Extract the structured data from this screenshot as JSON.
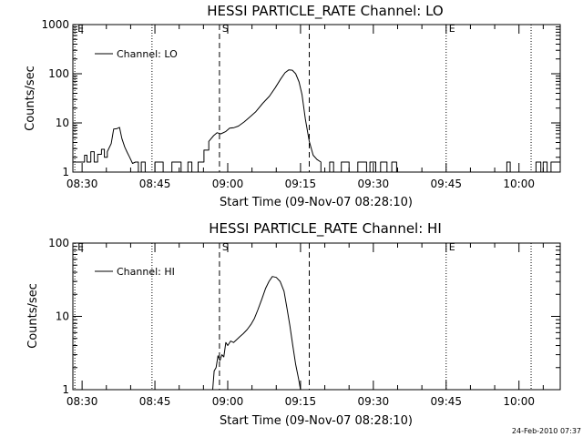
{
  "footer_timestamp": "24-Feb-2010 07:37",
  "chart_data": [
    {
      "type": "line",
      "title": "HESSI PARTICLE_RATE Channel: LO",
      "xlabel": "Start Time (09-Nov-07 08:28:10)",
      "ylabel": "Counts/sec",
      "x_unit": "minutes after 08:30",
      "xlim": [
        -1.9,
        98.5
      ],
      "ylim": [
        1,
        1000
      ],
      "yscale": "log",
      "x_ticks": [
        {
          "label": "08:30",
          "value": 0
        },
        {
          "label": "08:45",
          "value": 15
        },
        {
          "label": "09:00",
          "value": 30
        },
        {
          "label": "09:15",
          "value": 45
        },
        {
          "label": "09:30",
          "value": 60
        },
        {
          "label": "09:45",
          "value": 75
        },
        {
          "label": "10:00",
          "value": 90
        }
      ],
      "y_ticks": [
        {
          "label": "1",
          "value": 1
        },
        {
          "label": "10",
          "value": 10
        },
        {
          "label": "100",
          "value": 100
        },
        {
          "label": "1000",
          "value": 1000
        }
      ],
      "markers": [
        {
          "label": "E",
          "x": -1.5,
          "style": "dotted"
        },
        {
          "label": "",
          "x": 14.4,
          "style": "dotted"
        },
        {
          "label": "S",
          "x": 28.3,
          "style": "dashed"
        },
        {
          "label": "",
          "x": 46.8,
          "style": "dashed"
        },
        {
          "label": "E",
          "x": 75.0,
          "style": "dotted"
        },
        {
          "label": "",
          "x": 92.5,
          "style": "dotted"
        }
      ],
      "grid": false,
      "legend_position": "top-left",
      "series": [
        {
          "name": "Channel: LO",
          "x": [
            -1.9,
            0.5,
            0.5,
            1.0,
            1.0,
            1.8,
            1.8,
            2.5,
            2.5,
            3.2,
            3.2,
            4.0,
            4.0,
            4.6,
            4.6,
            5.2,
            5.2,
            6.0,
            6.5,
            7.1,
            7.7,
            8.2,
            8.8,
            9.3,
            9.8,
            10.4,
            11.0,
            11.6,
            11.6,
            12.2,
            12.2,
            13.0,
            13.0,
            15.0,
            15.0,
            16.7,
            16.7,
            18.5,
            18.5,
            20.4,
            20.4,
            21.8,
            21.8,
            22.6,
            22.6,
            23.9,
            23.9,
            25.1,
            25.1,
            26.1,
            26.1,
            27.1,
            27.8,
            28.6,
            29.6,
            30.4,
            31.3,
            32.2,
            33.4,
            34.5,
            35.8,
            37.2,
            38.6,
            39.8,
            40.9,
            41.8,
            42.6,
            43.3,
            44.0,
            44.7,
            45.3,
            46.0,
            46.8,
            47.6,
            48.4,
            49.2,
            49.2,
            51.0,
            51.0,
            51.8,
            51.8,
            53.4,
            53.4,
            55.0,
            55.0,
            56.8,
            56.8,
            58.6,
            58.6,
            59.3,
            59.3,
            60.5,
            60.5,
            61.5,
            61.5,
            62.8,
            62.8,
            63.8,
            63.8,
            64.8,
            64.8,
            87.5,
            87.5,
            88.2,
            88.2,
            93.5,
            93.5,
            94.5,
            94.5,
            95.0,
            95.0,
            95.8,
            95.8,
            96.6,
            96.6,
            97.5,
            98.5
          ],
          "y": [
            1.6,
            1.6,
            2.2,
            2.2,
            1.6,
            1.6,
            2.6,
            2.6,
            1.6,
            1.6,
            2.3,
            2.3,
            2.9,
            2.9,
            2.0,
            2.0,
            2.6,
            3.8,
            7.5,
            7.6,
            8.1,
            4.8,
            3.2,
            2.5,
            2.0,
            1.5,
            1.6,
            1.6,
            1.0,
            1.0,
            1.6,
            1.6,
            1.0,
            1.0,
            1.6,
            1.6,
            1.0,
            1.0,
            1.6,
            1.6,
            1.0,
            1.0,
            1.6,
            1.6,
            1.0,
            1.0,
            1.6,
            1.6,
            2.8,
            2.8,
            4.2,
            5.5,
            6.3,
            6.0,
            6.7,
            7.8,
            8.0,
            8.6,
            10.5,
            13.0,
            17.0,
            25.0,
            35.0,
            52.0,
            78.0,
            105.0,
            120.0,
            118.0,
            100.0,
            68.0,
            38.0,
            12.0,
            4.2,
            2.2,
            1.8,
            1.6,
            1.0,
            1.0,
            1.6,
            1.6,
            1.0,
            1.0,
            1.6,
            1.6,
            1.0,
            1.0,
            1.6,
            1.6,
            1.0,
            1.0,
            1.6,
            1.6,
            1.0,
            1.0,
            1.6,
            1.6,
            1.0,
            1.0,
            1.6,
            1.6,
            1.0,
            1.0,
            1.6,
            1.6,
            1.0,
            1.0,
            1.6,
            1.6,
            1.0,
            1.0,
            1.6,
            1.6,
            1.0,
            1.0,
            1.6,
            1.6,
            1.6
          ]
        }
      ]
    },
    {
      "type": "line",
      "title": "HESSI PARTICLE_RATE Channel: HI",
      "xlabel": "Start Time (09-Nov-07 08:28:10)",
      "ylabel": "Counts/sec",
      "x_unit": "minutes after 08:30",
      "xlim": [
        -1.9,
        98.5
      ],
      "ylim": [
        1,
        100
      ],
      "yscale": "log",
      "x_ticks": [
        {
          "label": "08:30",
          "value": 0
        },
        {
          "label": "08:45",
          "value": 15
        },
        {
          "label": "09:00",
          "value": 30
        },
        {
          "label": "09:15",
          "value": 45
        },
        {
          "label": "09:30",
          "value": 60
        },
        {
          "label": "09:45",
          "value": 75
        },
        {
          "label": "10:00",
          "value": 90
        }
      ],
      "y_ticks": [
        {
          "label": "1",
          "value": 1
        },
        {
          "label": "10",
          "value": 10
        },
        {
          "label": "100",
          "value": 100
        }
      ],
      "markers": [
        {
          "label": "E",
          "x": -1.5,
          "style": "dotted"
        },
        {
          "label": "",
          "x": 14.4,
          "style": "dotted"
        },
        {
          "label": "S",
          "x": 28.3,
          "style": "dashed"
        },
        {
          "label": "",
          "x": 46.8,
          "style": "dashed"
        },
        {
          "label": "E",
          "x": 75.0,
          "style": "dotted"
        },
        {
          "label": "",
          "x": 92.5,
          "style": "dotted"
        }
      ],
      "grid": false,
      "legend_position": "top-left",
      "series": [
        {
          "name": "Channel: HI",
          "x": [
            26.9,
            27.2,
            27.6,
            28.0,
            28.4,
            28.8,
            29.2,
            29.6,
            30.0,
            30.6,
            31.2,
            31.8,
            32.5,
            33.2,
            34.0,
            34.8,
            35.5,
            36.2,
            37.0,
            37.8,
            38.5,
            39.2,
            40.0,
            40.8,
            41.6,
            42.2,
            42.8,
            43.4,
            44.0,
            44.6,
            45.0
          ],
          "y": [
            1.0,
            1.8,
            2.0,
            2.9,
            2.5,
            3.0,
            2.8,
            4.4,
            4.0,
            4.6,
            4.4,
            4.8,
            5.3,
            5.8,
            6.6,
            7.8,
            9.4,
            12.2,
            17.0,
            24.0,
            30.0,
            35.0,
            34.0,
            30.0,
            22.0,
            13.0,
            7.5,
            4.0,
            2.2,
            1.4,
            1.0
          ]
        }
      ]
    }
  ]
}
